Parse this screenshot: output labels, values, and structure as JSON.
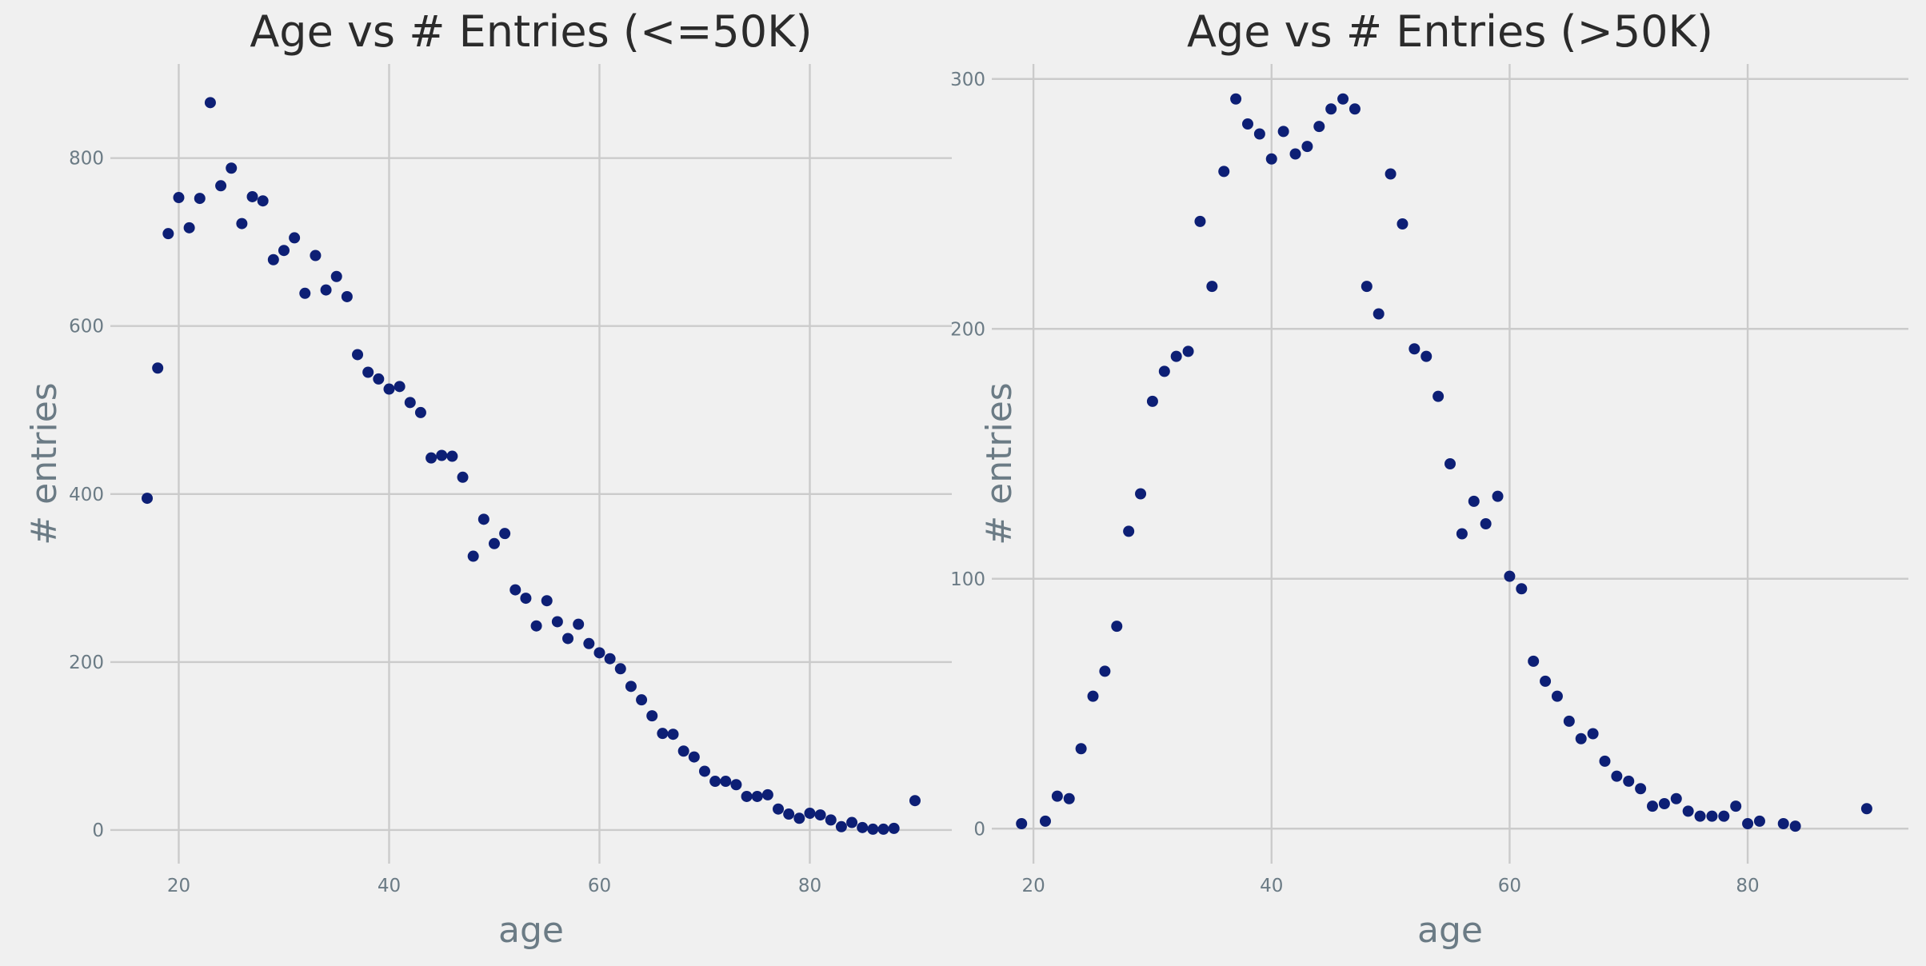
{
  "chart_data": [
    {
      "type": "scatter",
      "title": "Age vs # Entries (<=50K)",
      "xlabel": "age",
      "ylabel": "# entries",
      "xlim": [
        13.5,
        93.5
      ],
      "ylim": [
        -40,
        912
      ],
      "xticks": [
        20,
        40,
        60,
        80
      ],
      "yticks": [
        0,
        200,
        400,
        600,
        800
      ],
      "grid": true,
      "color": "#0d1f75",
      "points": [
        [
          17,
          395
        ],
        [
          18,
          550
        ],
        [
          19,
          710
        ],
        [
          20,
          753
        ],
        [
          21,
          717
        ],
        [
          22,
          752
        ],
        [
          23,
          866
        ],
        [
          24,
          767
        ],
        [
          25,
          788
        ],
        [
          26,
          722
        ],
        [
          27,
          754
        ],
        [
          28,
          749
        ],
        [
          29,
          679
        ],
        [
          30,
          690
        ],
        [
          31,
          705
        ],
        [
          32,
          639
        ],
        [
          33,
          684
        ],
        [
          34,
          643
        ],
        [
          35,
          659
        ],
        [
          36,
          635
        ],
        [
          37,
          566
        ],
        [
          38,
          545
        ],
        [
          39,
          537
        ],
        [
          40,
          525
        ],
        [
          41,
          528
        ],
        [
          42,
          509
        ],
        [
          43,
          497
        ],
        [
          44,
          443
        ],
        [
          45,
          446
        ],
        [
          46,
          445
        ],
        [
          47,
          420
        ],
        [
          48,
          326
        ],
        [
          49,
          370
        ],
        [
          50,
          341
        ],
        [
          51,
          353
        ],
        [
          52,
          286
        ],
        [
          53,
          276
        ],
        [
          54,
          243
        ],
        [
          55,
          273
        ],
        [
          56,
          248
        ],
        [
          57,
          228
        ],
        [
          58,
          245
        ],
        [
          59,
          222
        ],
        [
          60,
          211
        ],
        [
          61,
          204
        ],
        [
          62,
          192
        ],
        [
          63,
          171
        ],
        [
          64,
          155
        ],
        [
          65,
          136
        ],
        [
          66,
          115
        ],
        [
          67,
          114
        ],
        [
          68,
          94
        ],
        [
          69,
          87
        ],
        [
          70,
          70
        ],
        [
          71,
          58
        ],
        [
          72,
          58
        ],
        [
          73,
          54
        ],
        [
          74,
          40
        ],
        [
          75,
          40
        ],
        [
          76,
          42
        ],
        [
          77,
          25
        ],
        [
          78,
          19
        ],
        [
          79,
          14
        ],
        [
          80,
          20
        ],
        [
          81,
          18
        ],
        [
          82,
          12
        ],
        [
          83,
          4
        ],
        [
          84,
          9
        ],
        [
          85,
          3
        ],
        [
          86,
          1
        ],
        [
          87,
          1
        ],
        [
          88,
          2
        ],
        [
          90,
          35
        ]
      ]
    },
    {
      "type": "scatter",
      "title": "Age vs # Entries (>50K)",
      "xlabel": "age",
      "ylabel": "# entries",
      "xlim": [
        16.5,
        93.5
      ],
      "ylim": [
        -14,
        306
      ],
      "xticks": [
        20,
        40,
        60,
        80
      ],
      "yticks": [
        0,
        100,
        200,
        300
      ],
      "grid": true,
      "color": "#0d1f75",
      "points": [
        [
          19,
          2
        ],
        [
          21,
          3
        ],
        [
          22,
          13
        ],
        [
          23,
          12
        ],
        [
          24,
          32
        ],
        [
          25,
          53
        ],
        [
          26,
          63
        ],
        [
          27,
          81
        ],
        [
          28,
          119
        ],
        [
          29,
          134
        ],
        [
          30,
          171
        ],
        [
          31,
          183
        ],
        [
          32,
          189
        ],
        [
          33,
          191
        ],
        [
          34,
          243
        ],
        [
          35,
          217
        ],
        [
          36,
          263
        ],
        [
          37,
          292
        ],
        [
          38,
          282
        ],
        [
          39,
          278
        ],
        [
          40,
          268
        ],
        [
          41,
          279
        ],
        [
          42,
          270
        ],
        [
          43,
          273
        ],
        [
          44,
          281
        ],
        [
          45,
          288
        ],
        [
          46,
          292
        ],
        [
          47,
          288
        ],
        [
          48,
          217
        ],
        [
          49,
          206
        ],
        [
          50,
          262
        ],
        [
          51,
          242
        ],
        [
          52,
          192
        ],
        [
          53,
          189
        ],
        [
          54,
          173
        ],
        [
          55,
          146
        ],
        [
          56,
          118
        ],
        [
          57,
          131
        ],
        [
          58,
          122
        ],
        [
          59,
          133
        ],
        [
          60,
          101
        ],
        [
          61,
          96
        ],
        [
          62,
          67
        ],
        [
          63,
          59
        ],
        [
          64,
          53
        ],
        [
          65,
          43
        ],
        [
          66,
          36
        ],
        [
          67,
          38
        ],
        [
          68,
          27
        ],
        [
          69,
          21
        ],
        [
          70,
          19
        ],
        [
          71,
          16
        ],
        [
          72,
          9
        ],
        [
          73,
          10
        ],
        [
          74,
          12
        ],
        [
          75,
          7
        ],
        [
          76,
          5
        ],
        [
          77,
          5
        ],
        [
          78,
          5
        ],
        [
          79,
          9
        ],
        [
          80,
          2
        ],
        [
          81,
          3
        ],
        [
          83,
          2
        ],
        [
          84,
          1
        ],
        [
          90,
          8
        ]
      ]
    }
  ]
}
